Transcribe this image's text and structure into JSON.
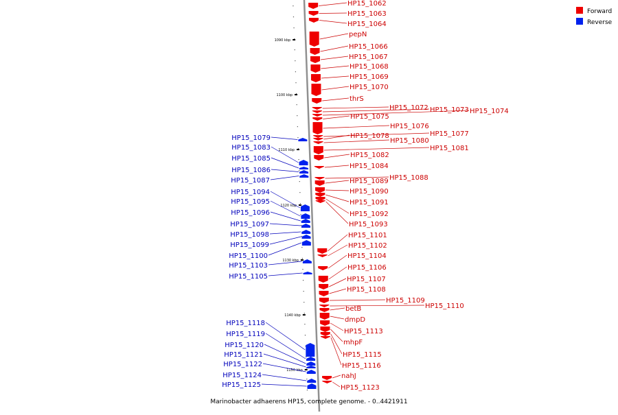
{
  "caption": "Marinobacter adhaerens HP15, complete genome. - 0..4421911",
  "legend": {
    "forward_label": "Forward",
    "reverse_label": "Reverse",
    "forward_color": "#ee0000",
    "reverse_color": "#0022ee"
  },
  "colors": {
    "axis": "#909090",
    "tick": "#000000",
    "forward_label": "#cc0000",
    "reverse_label": "#0000bb",
    "background": "#ffffff"
  },
  "ticks": [
    {
      "label": "1090 kbp"
    },
    {
      "label": "1100 kbp"
    },
    {
      "label": "1110 kbp"
    },
    {
      "label": "1120 kbp"
    },
    {
      "label": "1130 kbp"
    },
    {
      "label": "1140 kbp"
    },
    {
      "label": "1150 kbp"
    }
  ],
  "forward_genes": [
    {
      "label": "HP15_1062"
    },
    {
      "label": "HP15_1063"
    },
    {
      "label": "HP15_1064"
    },
    {
      "label": "pepN"
    },
    {
      "label": "HP15_1066"
    },
    {
      "label": "HP15_1067"
    },
    {
      "label": "HP15_1068"
    },
    {
      "label": "HP15_1069"
    },
    {
      "label": "HP15_1070"
    },
    {
      "label": "thrS"
    },
    {
      "label": "HP15_1072"
    },
    {
      "label": "HP15_1073"
    },
    {
      "label": "HP15_1074"
    },
    {
      "label": "HP15_1075"
    },
    {
      "label": "HP15_1076"
    },
    {
      "label": "HP15_1077"
    },
    {
      "label": "HP15_1078"
    },
    {
      "label": "HP15_1080"
    },
    {
      "label": "HP15_1081"
    },
    {
      "label": "HP15_1082"
    },
    {
      "label": "HP15_1084"
    },
    {
      "label": "HP15_1088"
    },
    {
      "label": "HP15_1089"
    },
    {
      "label": "HP15_1090"
    },
    {
      "label": "HP15_1091"
    },
    {
      "label": "HP15_1092"
    },
    {
      "label": "HP15_1093"
    },
    {
      "label": "HP15_1101"
    },
    {
      "label": "HP15_1102"
    },
    {
      "label": "HP15_1104"
    },
    {
      "label": "HP15_1106"
    },
    {
      "label": "HP15_1107"
    },
    {
      "label": "HP15_1108"
    },
    {
      "label": "HP15_1109"
    },
    {
      "label": "HP15_1110"
    },
    {
      "label": "betB"
    },
    {
      "label": "dmpD"
    },
    {
      "label": "HP15_1113"
    },
    {
      "label": "mhpF"
    },
    {
      "label": "HP15_1115"
    },
    {
      "label": "HP15_1116"
    },
    {
      "label": "nahJ"
    },
    {
      "label": "HP15_1123"
    }
  ],
  "reverse_genes": [
    {
      "label": "HP15_1079"
    },
    {
      "label": "HP15_1083"
    },
    {
      "label": "HP15_1085"
    },
    {
      "label": "HP15_1086"
    },
    {
      "label": "HP15_1087"
    },
    {
      "label": "HP15_1094"
    },
    {
      "label": "HP15_1095"
    },
    {
      "label": "HP15_1096"
    },
    {
      "label": "HP15_1097"
    },
    {
      "label": "HP15_1098"
    },
    {
      "label": "HP15_1099"
    },
    {
      "label": "HP15_1100"
    },
    {
      "label": "HP15_1103"
    },
    {
      "label": "HP15_1105"
    },
    {
      "label": "HP15_1118"
    },
    {
      "label": "HP15_1119"
    },
    {
      "label": "HP15_1120"
    },
    {
      "label": "HP15_1121"
    },
    {
      "label": "HP15_1122"
    },
    {
      "label": "HP15_1124"
    },
    {
      "label": "HP15_1125"
    }
  ]
}
